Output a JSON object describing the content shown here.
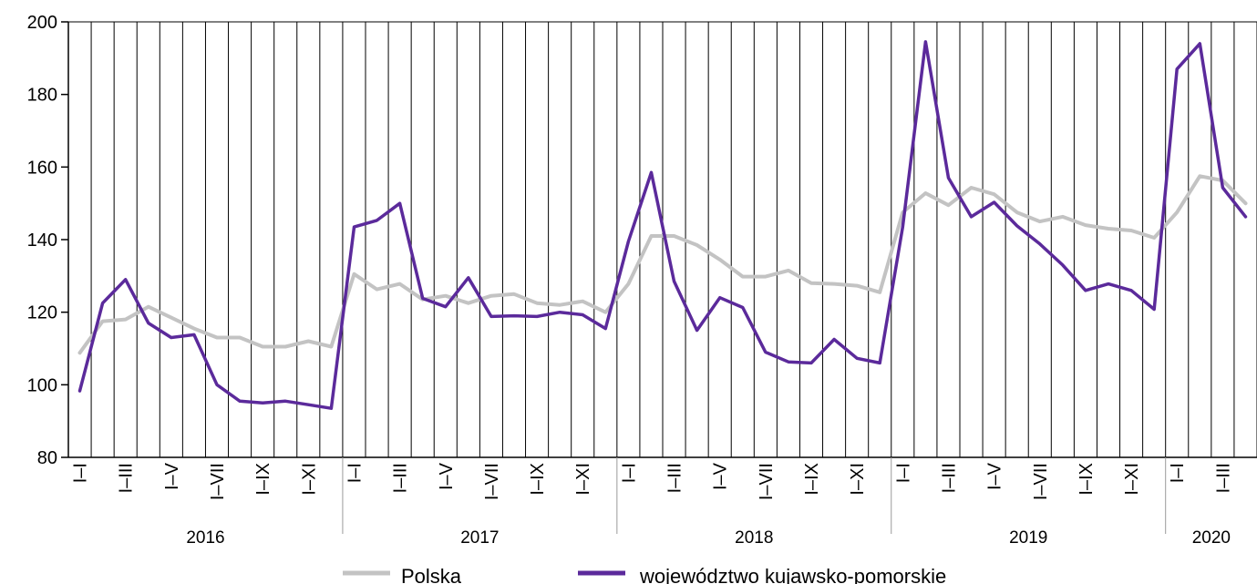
{
  "chart_data": {
    "type": "line",
    "title": "",
    "xlabel": "",
    "ylabel": "",
    "ylim": [
      80,
      200
    ],
    "yticks": [
      80,
      100,
      120,
      140,
      160,
      180,
      200
    ],
    "grid": "vertical lines at each month",
    "legend_position": "bottom",
    "years": [
      {
        "label": "2016",
        "months": 12
      },
      {
        "label": "2017",
        "months": 12
      },
      {
        "label": "2018",
        "months": 12
      },
      {
        "label": "2019",
        "months": 12
      },
      {
        "label": "2020",
        "months": 4
      }
    ],
    "x_tick_labels": [
      "I–I",
      "",
      "I–III",
      "",
      "I–V",
      "",
      "I–VII",
      "",
      "I–IX",
      "",
      "I–XI",
      "",
      "I–I",
      "",
      "I–III",
      "",
      "I–V",
      "",
      "I–VII",
      "",
      "I–IX",
      "",
      "I–XI",
      "",
      "I–I",
      "",
      "I–III",
      "",
      "I–V",
      "",
      "I–VII",
      "",
      "I–IX",
      "",
      "I–XI",
      "",
      "I–I",
      "",
      "I–III",
      "",
      "I–V",
      "",
      "I–VII",
      "",
      "I–IX",
      "",
      "I–XI",
      "",
      "I–I",
      "",
      "I–III",
      ""
    ],
    "series": [
      {
        "name": "Polska",
        "color": "#c3c3c3",
        "values": [
          108.8,
          117.5,
          118.0,
          121.5,
          118.5,
          115.5,
          113.0,
          113.0,
          110.5,
          110.5,
          112.0,
          110.5,
          130.5,
          126.3,
          127.8,
          123.5,
          124.5,
          122.5,
          124.5,
          125.0,
          122.5,
          122.0,
          123.0,
          120.0,
          127.8,
          141.0,
          141.0,
          138.5,
          134.5,
          129.8,
          129.8,
          131.5,
          128.0,
          127.8,
          127.3,
          125.5,
          147.5,
          152.8,
          149.5,
          154.3,
          152.5,
          147.5,
          145.0,
          146.3,
          144.0,
          143.0,
          142.5,
          140.5,
          147.5,
          157.5,
          156.3,
          150.0
        ]
      },
      {
        "name": "województwo kujawsko-pomorskie",
        "color": "#5b2a9b",
        "values": [
          98.3,
          122.5,
          129.0,
          117.0,
          113.0,
          113.8,
          100.0,
          95.5,
          95.0,
          95.5,
          94.5,
          93.5,
          143.5,
          145.3,
          150.0,
          123.8,
          121.5,
          129.5,
          118.8,
          119.0,
          118.8,
          120.0,
          119.3,
          115.5,
          139.5,
          158.5,
          128.5,
          115.0,
          124.0,
          121.3,
          109.0,
          106.3,
          106.0,
          112.5,
          107.3,
          106.0,
          143.5,
          194.5,
          157.0,
          146.3,
          150.3,
          143.8,
          138.8,
          133.0,
          126.0,
          127.8,
          126.0,
          120.8,
          187.0,
          194.0,
          154.3,
          146.3
        ]
      }
    ]
  }
}
